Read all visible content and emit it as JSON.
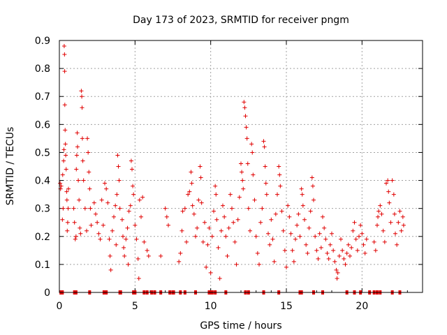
{
  "chart_data": {
    "type": "scatter",
    "title": "Day 173 of 2023, SRMTID for receiver pngm",
    "xlabel": "GPS time / hours",
    "ylabel": "SRMTID / TECUs",
    "xlim": [
      0,
      24
    ],
    "ylim": [
      0,
      0.9
    ],
    "xticks": [
      0,
      5,
      10,
      15,
      20
    ],
    "xtick_labels": [
      "0",
      "5",
      "10",
      "15",
      "20"
    ],
    "yticks": [
      0,
      0.1,
      0.2,
      0.3,
      0.4,
      0.5,
      0.6,
      0.7,
      0.8,
      0.9
    ],
    "ytick_labels": [
      "0",
      "0.1",
      "0.2",
      "0.3",
      "0.4",
      "0.5",
      "0.6",
      "0.7",
      "0.8",
      "0.9"
    ],
    "grid": true,
    "marker": "plus",
    "color": "#e00000",
    "series": [
      {
        "name": "SRMTID",
        "points": [
          [
            0.05,
            0.39
          ],
          [
            0.08,
            0.37
          ],
          [
            0.12,
            0.38
          ],
          [
            0.2,
            0.26
          ],
          [
            0.22,
            0.42
          ],
          [
            0.25,
            0.3
          ],
          [
            0.28,
            0.47
          ],
          [
            0.3,
            0.51
          ],
          [
            0.32,
            0.88
          ],
          [
            0.34,
            0.85
          ],
          [
            0.35,
            0.79
          ],
          [
            0.36,
            0.67
          ],
          [
            0.38,
            0.58
          ],
          [
            0.4,
            0.53
          ],
          [
            0.42,
            0.49
          ],
          [
            0.45,
            0.44
          ],
          [
            0.48,
            0.36
          ],
          [
            0.5,
            0.33
          ],
          [
            0.52,
            0.22
          ],
          [
            0.55,
            0.25
          ],
          [
            0.58,
            0.3
          ],
          [
            0.6,
            0.37
          ],
          [
            0.95,
            0.3
          ],
          [
            1.0,
            0.25
          ],
          [
            1.05,
            0.19
          ],
          [
            1.1,
            0.2
          ],
          [
            1.12,
            0.44
          ],
          [
            1.15,
            0.49
          ],
          [
            1.18,
            0.57
          ],
          [
            1.2,
            0.52
          ],
          [
            1.25,
            0.4
          ],
          [
            1.3,
            0.33
          ],
          [
            1.35,
            0.23
          ],
          [
            1.4,
            0.21
          ],
          [
            1.45,
            0.72
          ],
          [
            1.48,
            0.7
          ],
          [
            1.5,
            0.66
          ],
          [
            1.52,
            0.55
          ],
          [
            1.55,
            0.47
          ],
          [
            1.6,
            0.4
          ],
          [
            1.7,
            0.3
          ],
          [
            1.8,
            0.22
          ],
          [
            1.85,
            0.55
          ],
          [
            1.9,
            0.5
          ],
          [
            1.95,
            0.43
          ],
          [
            2.0,
            0.37
          ],
          [
            2.05,
            0.3
          ],
          [
            2.1,
            0.24
          ],
          [
            2.3,
            0.32
          ],
          [
            2.4,
            0.28
          ],
          [
            2.5,
            0.25
          ],
          [
            2.6,
            0.21
          ],
          [
            2.7,
            0.19
          ],
          [
            2.8,
            0.33
          ],
          [
            2.9,
            0.24
          ],
          [
            3.0,
            0.39
          ],
          [
            3.1,
            0.37
          ],
          [
            3.2,
            0.32
          ],
          [
            3.3,
            0.19
          ],
          [
            3.35,
            0.13
          ],
          [
            3.4,
            0.08
          ],
          [
            3.5,
            0.22
          ],
          [
            3.6,
            0.27
          ],
          [
            3.7,
            0.31
          ],
          [
            3.75,
            0.17
          ],
          [
            3.8,
            0.35
          ],
          [
            3.85,
            0.49
          ],
          [
            3.9,
            0.45
          ],
          [
            3.95,
            0.4
          ],
          [
            4.0,
            0.3
          ],
          [
            4.15,
            0.26
          ],
          [
            4.2,
            0.2
          ],
          [
            4.25,
            0.16
          ],
          [
            4.3,
            0.13
          ],
          [
            4.4,
            0.19
          ],
          [
            4.5,
            0.23
          ],
          [
            4.55,
            0.1
          ],
          [
            4.6,
            0.29
          ],
          [
            4.7,
            0.31
          ],
          [
            4.75,
            0.47
          ],
          [
            4.8,
            0.44
          ],
          [
            4.85,
            0.38
          ],
          [
            4.9,
            0.35
          ],
          [
            5.0,
            0.24
          ],
          [
            5.1,
            0.19
          ],
          [
            5.2,
            0.12
          ],
          [
            5.25,
            0.05
          ],
          [
            5.3,
            0.33
          ],
          [
            5.4,
            0.27
          ],
          [
            5.5,
            0.34
          ],
          [
            5.6,
            0.18
          ],
          [
            5.8,
            0.15
          ],
          [
            5.9,
            0.13
          ],
          [
            6.7,
            0.13
          ],
          [
            7.0,
            0.3
          ],
          [
            7.1,
            0.27
          ],
          [
            7.2,
            0.24
          ],
          [
            7.9,
            0.11
          ],
          [
            8.0,
            0.14
          ],
          [
            8.1,
            0.22
          ],
          [
            8.15,
            0.29
          ],
          [
            8.3,
            0.3
          ],
          [
            8.4,
            0.18
          ],
          [
            8.5,
            0.35
          ],
          [
            8.6,
            0.36
          ],
          [
            8.7,
            0.43
          ],
          [
            8.75,
            0.39
          ],
          [
            8.8,
            0.31
          ],
          [
            8.9,
            0.28
          ],
          [
            9.0,
            0.2
          ],
          [
            9.1,
            0.23
          ],
          [
            9.2,
            0.33
          ],
          [
            9.3,
            0.45
          ],
          [
            9.35,
            0.41
          ],
          [
            9.4,
            0.32
          ],
          [
            9.5,
            0.18
          ],
          [
            9.6,
            0.25
          ],
          [
            9.7,
            0.09
          ],
          [
            9.8,
            0.17
          ],
          [
            9.9,
            0.23
          ],
          [
            10.0,
            0.07
          ],
          [
            10.1,
            0.2
          ],
          [
            10.2,
            0.29
          ],
          [
            10.3,
            0.38
          ],
          [
            10.35,
            0.35
          ],
          [
            10.4,
            0.26
          ],
          [
            10.5,
            0.16
          ],
          [
            10.6,
            0.05
          ],
          [
            10.7,
            0.22
          ],
          [
            10.8,
            0.31
          ],
          [
            10.9,
            0.27
          ],
          [
            11.0,
            0.2
          ],
          [
            11.1,
            0.13
          ],
          [
            11.2,
            0.23
          ],
          [
            11.3,
            0.35
          ],
          [
            11.4,
            0.3
          ],
          [
            11.5,
            0.25
          ],
          [
            11.6,
            0.18
          ],
          [
            11.7,
            0.1
          ],
          [
            11.8,
            0.26
          ],
          [
            11.9,
            0.34
          ],
          [
            12.0,
            0.46
          ],
          [
            12.05,
            0.43
          ],
          [
            12.1,
            0.4
          ],
          [
            12.15,
            0.37
          ],
          [
            12.2,
            0.68
          ],
          [
            12.25,
            0.66
          ],
          [
            12.3,
            0.63
          ],
          [
            12.35,
            0.59
          ],
          [
            12.4,
            0.55
          ],
          [
            12.45,
            0.46
          ],
          [
            12.5,
            0.3
          ],
          [
            12.6,
            0.22
          ],
          [
            12.7,
            0.53
          ],
          [
            12.75,
            0.5
          ],
          [
            12.8,
            0.42
          ],
          [
            12.9,
            0.33
          ],
          [
            13.0,
            0.2
          ],
          [
            13.1,
            0.14
          ],
          [
            13.2,
            0.1
          ],
          [
            13.3,
            0.25
          ],
          [
            13.4,
            0.3
          ],
          [
            13.5,
            0.54
          ],
          [
            13.55,
            0.52
          ],
          [
            13.6,
            0.45
          ],
          [
            13.65,
            0.39
          ],
          [
            13.7,
            0.35
          ],
          [
            13.8,
            0.21
          ],
          [
            13.9,
            0.17
          ],
          [
            14.0,
            0.26
          ],
          [
            14.1,
            0.19
          ],
          [
            14.2,
            0.11
          ],
          [
            14.3,
            0.28
          ],
          [
            14.4,
            0.35
          ],
          [
            14.5,
            0.45
          ],
          [
            14.55,
            0.42
          ],
          [
            14.6,
            0.38
          ],
          [
            14.7,
            0.29
          ],
          [
            14.8,
            0.22
          ],
          [
            14.9,
            0.15
          ],
          [
            15.0,
            0.09
          ],
          [
            15.1,
            0.31
          ],
          [
            15.2,
            0.27
          ],
          [
            15.3,
            0.21
          ],
          [
            15.4,
            0.15
          ],
          [
            15.5,
            0.11
          ],
          [
            15.6,
            0.19
          ],
          [
            15.7,
            0.24
          ],
          [
            15.8,
            0.28
          ],
          [
            15.9,
            0.2
          ],
          [
            16.0,
            0.37
          ],
          [
            16.05,
            0.35
          ],
          [
            16.1,
            0.31
          ],
          [
            16.2,
            0.26
          ],
          [
            16.3,
            0.17
          ],
          [
            16.4,
            0.14
          ],
          [
            16.5,
            0.23
          ],
          [
            16.6,
            0.29
          ],
          [
            16.7,
            0.41
          ],
          [
            16.75,
            0.38
          ],
          [
            16.8,
            0.33
          ],
          [
            16.9,
            0.2
          ],
          [
            17.0,
            0.15
          ],
          [
            17.1,
            0.12
          ],
          [
            17.2,
            0.21
          ],
          [
            17.3,
            0.16
          ],
          [
            17.4,
            0.27
          ],
          [
            17.5,
            0.23
          ],
          [
            17.6,
            0.19
          ],
          [
            17.7,
            0.14
          ],
          [
            17.8,
            0.12
          ],
          [
            17.9,
            0.17
          ],
          [
            18.0,
            0.21
          ],
          [
            18.1,
            0.15
          ],
          [
            18.2,
            0.11
          ],
          [
            18.3,
            0.08
          ],
          [
            18.35,
            0.05
          ],
          [
            18.4,
            0.07
          ],
          [
            18.5,
            0.13
          ],
          [
            18.6,
            0.19
          ],
          [
            18.7,
            0.15
          ],
          [
            18.8,
            0.12
          ],
          [
            18.9,
            0.1
          ],
          [
            19.0,
            0.14
          ],
          [
            19.1,
            0.17
          ],
          [
            19.2,
            0.13
          ],
          [
            19.3,
            0.16
          ],
          [
            19.4,
            0.22
          ],
          [
            19.5,
            0.25
          ],
          [
            19.6,
            0.19
          ],
          [
            19.7,
            0.15
          ],
          [
            19.8,
            0.2
          ],
          [
            19.9,
            0.24
          ],
          [
            20.0,
            0.21
          ],
          [
            20.1,
            0.17
          ],
          [
            20.2,
            0.14
          ],
          [
            20.3,
            0.19
          ],
          [
            20.8,
            0.18
          ],
          [
            20.9,
            0.15
          ],
          [
            21.0,
            0.24
          ],
          [
            21.05,
            0.27
          ],
          [
            21.1,
            0.29
          ],
          [
            21.2,
            0.31
          ],
          [
            21.3,
            0.28
          ],
          [
            21.4,
            0.22
          ],
          [
            21.5,
            0.18
          ],
          [
            21.6,
            0.39
          ],
          [
            21.7,
            0.4
          ],
          [
            21.75,
            0.36
          ],
          [
            21.8,
            0.32
          ],
          [
            21.9,
            0.25
          ],
          [
            22.0,
            0.4
          ],
          [
            22.1,
            0.35
          ],
          [
            22.15,
            0.28
          ],
          [
            22.2,
            0.21
          ],
          [
            22.3,
            0.17
          ],
          [
            22.4,
            0.25
          ],
          [
            22.5,
            0.29
          ],
          [
            22.6,
            0.22
          ],
          [
            22.7,
            0.27
          ],
          [
            22.75,
            0.24
          ]
        ],
        "zero_points_x": [
          0.1,
          0.2,
          1.0,
          1.1,
          2.0,
          2.95,
          3.1,
          4.0,
          4.05,
          4.9,
          5.0,
          5.6,
          5.8,
          6.1,
          6.3,
          6.7,
          7.3,
          7.5,
          7.55,
          8.0,
          8.3,
          9.0,
          9.9,
          10.0,
          10.1,
          10.3,
          11.0,
          12.3,
          12.5,
          13.5,
          14.5,
          15.9,
          16.0,
          16.8,
          17.4,
          19.0,
          19.5,
          19.9,
          20.5,
          20.8,
          21.0,
          21.2,
          22.0,
          22.5
        ]
      }
    ]
  }
}
